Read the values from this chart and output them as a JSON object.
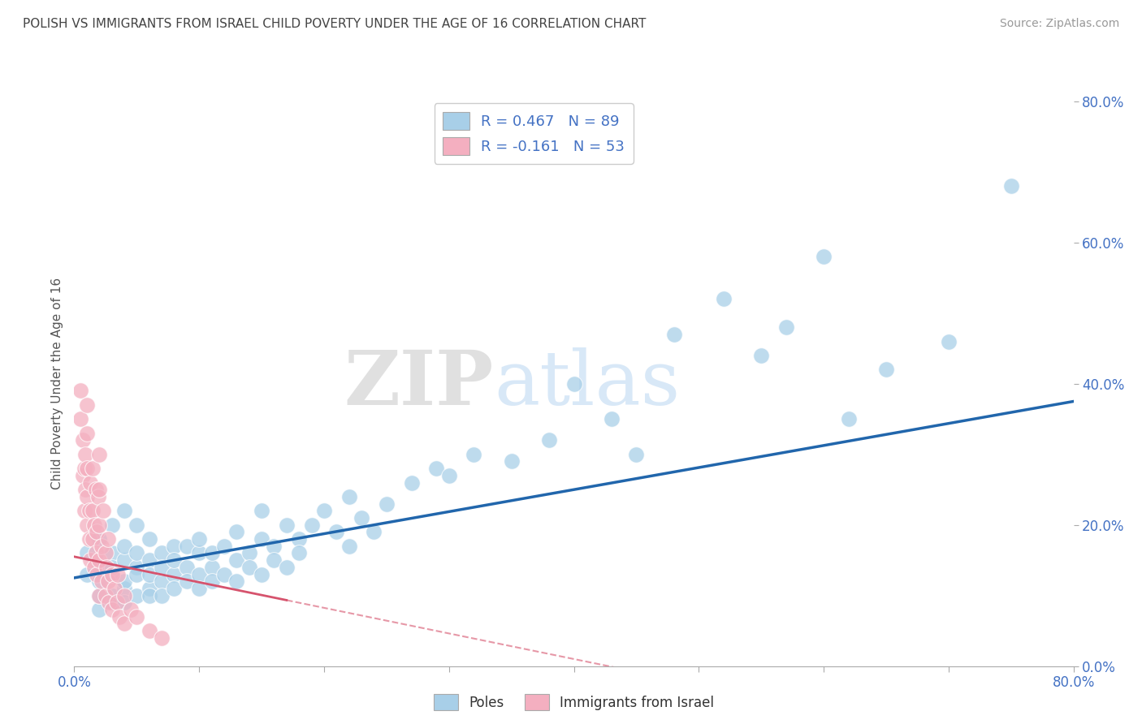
{
  "title": "POLISH VS IMMIGRANTS FROM ISRAEL CHILD POVERTY UNDER THE AGE OF 16 CORRELATION CHART",
  "source": "Source: ZipAtlas.com",
  "ylabel": "Child Poverty Under the Age of 16",
  "legend_blue_label": "R = 0.467   N = 89",
  "legend_pink_label": "R = -0.161   N = 53",
  "legend_bottom_blue": "Poles",
  "legend_bottom_pink": "Immigrants from Israel",
  "blue_color": "#a8cfe8",
  "pink_color": "#f4afc0",
  "blue_line_color": "#2166ac",
  "pink_line_color": "#d6536d",
  "background_color": "#ffffff",
  "watermark_zip": "ZIP",
  "watermark_atlas": "atlas",
  "blue_R": 0.467,
  "blue_N": 89,
  "pink_R": -0.161,
  "pink_N": 53,
  "xmin": 0.0,
  "xmax": 0.8,
  "ymin": 0.0,
  "ymax": 0.8,
  "blue_line_x0": 0.0,
  "blue_line_y0": 0.125,
  "blue_line_x1": 0.8,
  "blue_line_y1": 0.375,
  "pink_line_x0": 0.0,
  "pink_line_y0": 0.155,
  "pink_line_x1": 0.4,
  "pink_line_y1": 0.01,
  "blue_points_x": [
    0.01,
    0.01,
    0.02,
    0.02,
    0.02,
    0.02,
    0.02,
    0.03,
    0.03,
    0.03,
    0.03,
    0.03,
    0.03,
    0.04,
    0.04,
    0.04,
    0.04,
    0.04,
    0.04,
    0.05,
    0.05,
    0.05,
    0.05,
    0.05,
    0.06,
    0.06,
    0.06,
    0.06,
    0.06,
    0.07,
    0.07,
    0.07,
    0.07,
    0.08,
    0.08,
    0.08,
    0.08,
    0.09,
    0.09,
    0.09,
    0.1,
    0.1,
    0.1,
    0.1,
    0.11,
    0.11,
    0.11,
    0.12,
    0.12,
    0.13,
    0.13,
    0.13,
    0.14,
    0.14,
    0.15,
    0.15,
    0.15,
    0.16,
    0.16,
    0.17,
    0.17,
    0.18,
    0.18,
    0.19,
    0.2,
    0.21,
    0.22,
    0.22,
    0.23,
    0.24,
    0.25,
    0.27,
    0.29,
    0.3,
    0.32,
    0.35,
    0.38,
    0.4,
    0.43,
    0.45,
    0.48,
    0.52,
    0.55,
    0.57,
    0.6,
    0.62,
    0.65,
    0.7,
    0.75
  ],
  "blue_points_y": [
    0.13,
    0.16,
    0.08,
    0.12,
    0.14,
    0.18,
    0.1,
    0.09,
    0.13,
    0.16,
    0.1,
    0.14,
    0.2,
    0.11,
    0.15,
    0.12,
    0.17,
    0.09,
    0.22,
    0.1,
    0.14,
    0.16,
    0.13,
    0.2,
    0.11,
    0.15,
    0.13,
    0.18,
    0.1,
    0.12,
    0.16,
    0.14,
    0.1,
    0.13,
    0.17,
    0.15,
    0.11,
    0.14,
    0.12,
    0.17,
    0.13,
    0.16,
    0.11,
    0.18,
    0.14,
    0.12,
    0.16,
    0.13,
    0.17,
    0.15,
    0.12,
    0.19,
    0.16,
    0.14,
    0.18,
    0.13,
    0.22,
    0.17,
    0.15,
    0.2,
    0.14,
    0.18,
    0.16,
    0.2,
    0.22,
    0.19,
    0.17,
    0.24,
    0.21,
    0.19,
    0.23,
    0.26,
    0.28,
    0.27,
    0.3,
    0.29,
    0.32,
    0.4,
    0.35,
    0.3,
    0.47,
    0.52,
    0.44,
    0.48,
    0.58,
    0.35,
    0.42,
    0.46,
    0.68
  ],
  "pink_points_x": [
    0.005,
    0.005,
    0.007,
    0.007,
    0.008,
    0.008,
    0.009,
    0.009,
    0.01,
    0.01,
    0.01,
    0.01,
    0.01,
    0.012,
    0.012,
    0.013,
    0.013,
    0.015,
    0.015,
    0.015,
    0.016,
    0.016,
    0.017,
    0.017,
    0.018,
    0.018,
    0.019,
    0.02,
    0.02,
    0.02,
    0.02,
    0.02,
    0.022,
    0.022,
    0.023,
    0.025,
    0.025,
    0.026,
    0.027,
    0.027,
    0.028,
    0.03,
    0.03,
    0.032,
    0.034,
    0.035,
    0.036,
    0.04,
    0.04,
    0.045,
    0.05,
    0.06,
    0.07
  ],
  "pink_points_y": [
    0.35,
    0.39,
    0.27,
    0.32,
    0.22,
    0.28,
    0.25,
    0.3,
    0.2,
    0.24,
    0.28,
    0.33,
    0.37,
    0.18,
    0.22,
    0.15,
    0.26,
    0.18,
    0.22,
    0.28,
    0.14,
    0.2,
    0.16,
    0.25,
    0.13,
    0.19,
    0.24,
    0.1,
    0.15,
    0.2,
    0.25,
    0.3,
    0.12,
    0.17,
    0.22,
    0.1,
    0.16,
    0.14,
    0.12,
    0.18,
    0.09,
    0.13,
    0.08,
    0.11,
    0.09,
    0.13,
    0.07,
    0.1,
    0.06,
    0.08,
    0.07,
    0.05,
    0.04
  ]
}
